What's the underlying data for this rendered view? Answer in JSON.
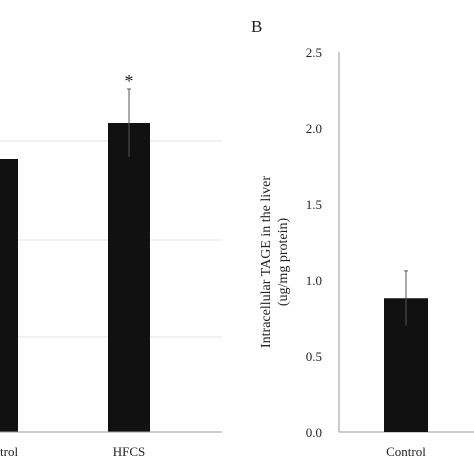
{
  "chart_data": [
    {
      "type": "bar",
      "panel": "A",
      "panel_label": "",
      "categories": [
        "Control",
        "HFCS"
      ],
      "category_labels": [
        "trol",
        "HFCS"
      ],
      "values": [
        null,
        null
      ],
      "errors": [
        null,
        null
      ],
      "annotations": [
        "",
        "*"
      ],
      "ylabel": "",
      "xlabel": "",
      "title": "",
      "grid": true,
      "bar_color": "#111111"
    },
    {
      "type": "bar",
      "panel": "B",
      "panel_label": "B",
      "categories": [
        "Control"
      ],
      "values": [
        0.88
      ],
      "errors": [
        0.18
      ],
      "ylabel_lines": [
        "Intracellular TAGE in the liver",
        "(ug/mg protein)"
      ],
      "yticks": [
        "0.0",
        "0.5",
        "1.0",
        "1.5",
        "2.0",
        "2.5"
      ],
      "ylim": [
        0,
        2.5
      ],
      "xlabel": "",
      "title": "",
      "grid": false,
      "bar_color": "#111111"
    }
  ]
}
